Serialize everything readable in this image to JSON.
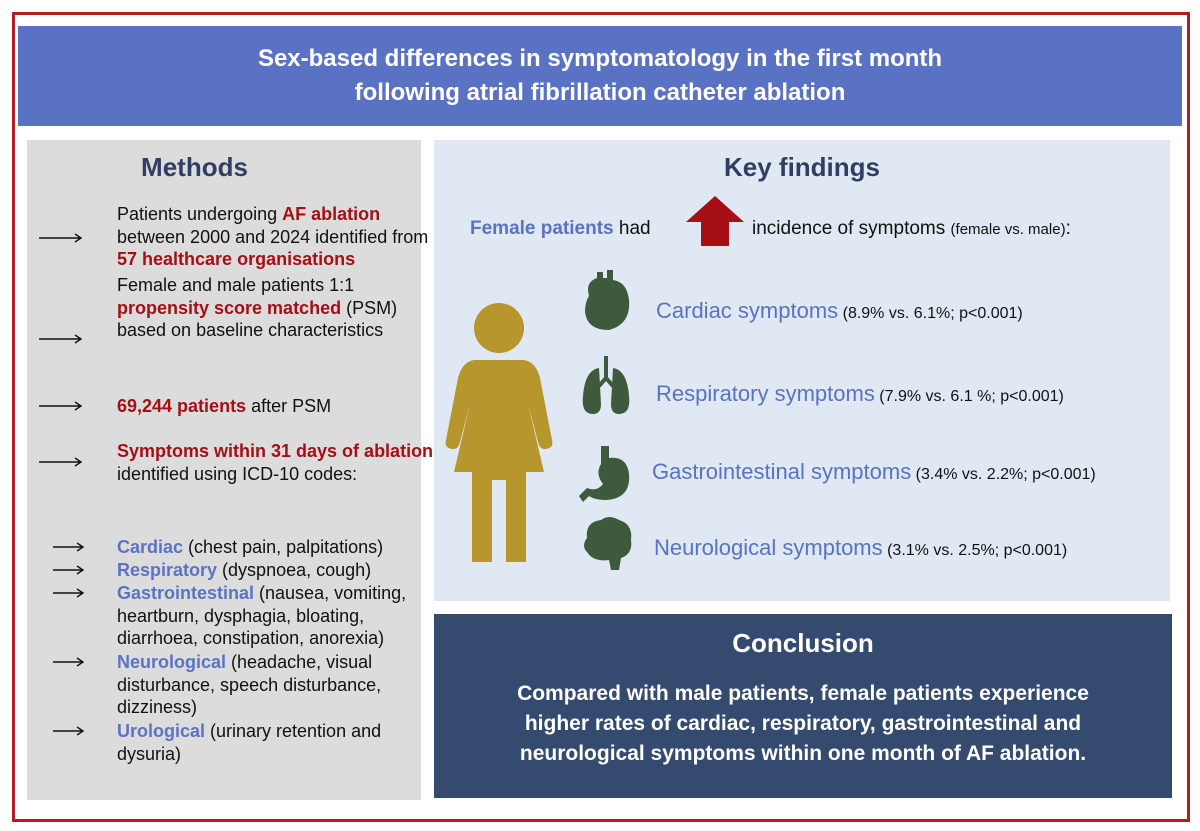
{
  "title_lines": [
    "Sex-based differences in symptomatology in the first month",
    "following atrial fibrillation catheter ablation"
  ],
  "methods": {
    "heading": "Methods",
    "items": [
      {
        "parts": [
          {
            "text": "Patients undergoing "
          },
          {
            "text": "AF ablation",
            "color": "#a50f15"
          },
          {
            "text": " between 2000 and 2024 identified from "
          },
          {
            "text": "57 healthcare organisations",
            "color": "#a50f15"
          }
        ]
      },
      {
        "parts": [
          {
            "text": "Female and male patients 1:1 "
          },
          {
            "text": "propensity score matched",
            "color": "#a50f15"
          },
          {
            "text": " (PSM) based on baseline characteristics"
          }
        ]
      },
      {
        "parts": [
          {
            "text": "69,244 patients",
            "color": "#a50f15"
          },
          {
            "text": " after PSM"
          }
        ]
      },
      {
        "parts": [
          {
            "text": "Symptoms within 31 days of ablation",
            "color": "#a50f15"
          },
          {
            "text": " identified using ICD-10 codes:"
          }
        ]
      }
    ],
    "subitems": [
      {
        "parts": [
          {
            "text": "Cardiac",
            "color": "#5b73c4"
          },
          {
            "text": " (chest pain, palpitations)"
          }
        ]
      },
      {
        "parts": [
          {
            "text": "Respiratory",
            "color": "#5b73c4"
          },
          {
            "text": " (dyspnoea, cough)"
          }
        ]
      },
      {
        "parts": [
          {
            "text": "Gastrointestinal",
            "color": "#5b73c4"
          },
          {
            "text": " (nausea, vomiting, heartburn, dysphagia, bloating, diarrhoea, constipation, anorexia)"
          }
        ]
      },
      {
        "parts": [
          {
            "text": "Neurological",
            "color": "#5b73c4"
          },
          {
            "text": " (headache, visual disturbance, speech disturbance, dizziness)"
          }
        ]
      },
      {
        "parts": [
          {
            "text": "Urological",
            "color": "#5b73c4"
          },
          {
            "text": " (urinary retention and dysuria)"
          }
        ]
      }
    ]
  },
  "key_findings": {
    "heading": "Key findings",
    "intro": {
      "subject": "Female patients",
      "verb": "had",
      "rest": "incidence of symptoms",
      "note": "(female vs. male)",
      "end": ":"
    },
    "findings": [
      {
        "name": "Cardiac symptoms",
        "detail": "(8.9% vs. 6.1%; p<0.001)"
      },
      {
        "name": "Respiratory symptoms",
        "detail": "(7.9% vs. 6.1 %; p<0.001)"
      },
      {
        "name": "Gastrointestinal symptoms",
        "detail": "(3.4% vs. 2.2%; p<0.001)"
      },
      {
        "name": "Neurological symptoms",
        "detail": "(3.1% vs. 2.5%; p<0.001)"
      }
    ]
  },
  "conclusion": {
    "heading": "Conclusion",
    "text_lines": [
      "Compared with male patients, female patients experience",
      "higher rates of cardiac, respiratory, gastrointestinal and",
      "neurological symptoms within one month of AF ablation."
    ]
  }
}
